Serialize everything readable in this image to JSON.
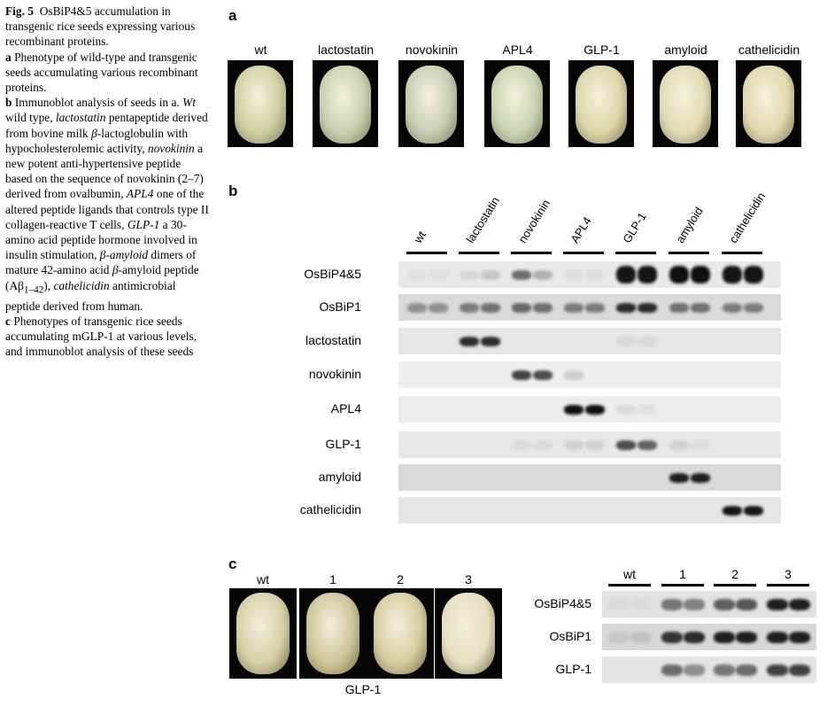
{
  "caption": {
    "fig_label": "Fig. 5",
    "fig_title": "OsBiP4&5 accumulation in transgenic rice seeds expressing various recombinant proteins.",
    "part_a_letter": "a",
    "part_a_text": "Phenotype of wild-type and transgenic seeds accumulating various recombinant proteins.",
    "part_b_letter": "b",
    "part_b_text_1": "Immunoblot analysis of seeds in a.",
    "wt_term": "Wt",
    "wt_def": "wild type,",
    "lactostatin_term": "lactostatin",
    "lactostatin_def": "pentapeptide derived from bovine milk",
    "beta1": "β",
    "lactostatin_def2": "-lactoglobulin with hypocholesterolemic activity,",
    "novokinin_term": "novokinin",
    "novokinin_def": "a new potent anti-hypertensive peptide based on the sequence of novokinin (2–7) derived from ovalbumin,",
    "apl4_term": "APL4",
    "apl4_def": "one of the altered peptide ligands that controls type II collagen-reactive T cells,",
    "glp1_term": "GLP-1",
    "glp1_def": "a 30-amino acid peptide hormone involved in insulin stimulation,",
    "amyloid_term": "β-amyloid",
    "amyloid_def": "dimers of mature 42-amino acid",
    "beta2": "β",
    "amyloid_def2": "-amyloid peptide (Aβ",
    "amyloid_sub": "1–42",
    "amyloid_def3": "),",
    "cathelicidin_term": "cathelicidin",
    "cathelicidin_def": "antimicrobial peptide derived from human.",
    "part_c_letter": "c",
    "part_c_text": "Phenotypes of transgenic rice seeds accumulating mGLP-1 at various levels, and immunoblot analysis of these seeds"
  },
  "panel_a": {
    "letter": "a",
    "seeds": [
      {
        "label": "wt",
        "color": "#cfcfa2"
      },
      {
        "label": "lactostatin",
        "color": "#c8d0b0"
      },
      {
        "label": "novokinin",
        "color": "#c7cdb3"
      },
      {
        "label": "APL4",
        "color": "#c9d3b4"
      },
      {
        "label": "GLP-1",
        "color": "#ddd4a8"
      },
      {
        "label": "amyloid",
        "color": "#e3dbb5"
      },
      {
        "label": "cathelicidin",
        "color": "#e2d7ae"
      }
    ]
  },
  "panel_b": {
    "letter": "b",
    "lanes": [
      "wt",
      "lactostatin",
      "novokinin",
      "APL4",
      "GLP-1",
      "amyloid",
      "cathelicidin"
    ],
    "rows": [
      {
        "label": "OsBiP4&5",
        "bg": "#e9e9e9"
      },
      {
        "label": "OsBiP1",
        "bg": "#dadada"
      },
      {
        "label": "lactostatin",
        "bg": "#e6e6e6"
      },
      {
        "label": "novokinin",
        "bg": "#efefef"
      },
      {
        "label": "APL4",
        "bg": "#ececec"
      },
      {
        "label": "GLP-1",
        "bg": "#e8e8e8"
      },
      {
        "label": "amyloid",
        "bg": "#d9d9d9"
      },
      {
        "label": "cathelicidin",
        "bg": "#e6e6e6"
      }
    ]
  },
  "panel_c": {
    "letter": "c",
    "seeds": [
      {
        "label": "wt",
        "color": "#d6d0a6"
      },
      {
        "label": "1",
        "color": "#cfc59a"
      },
      {
        "label": "2",
        "color": "#d8cda0"
      },
      {
        "label": "3",
        "color": "#e6dfc2"
      }
    ],
    "seed_group_label": "GLP-1",
    "lanes": [
      "wt",
      "1",
      "2",
      "3"
    ],
    "rows": [
      {
        "label": "OsBiP4&5",
        "bg": "#e2e2e2"
      },
      {
        "label": "OsBiP1",
        "bg": "#d8d8d8"
      },
      {
        "label": "GLP-1",
        "bg": "#e4e4e4"
      }
    ]
  }
}
